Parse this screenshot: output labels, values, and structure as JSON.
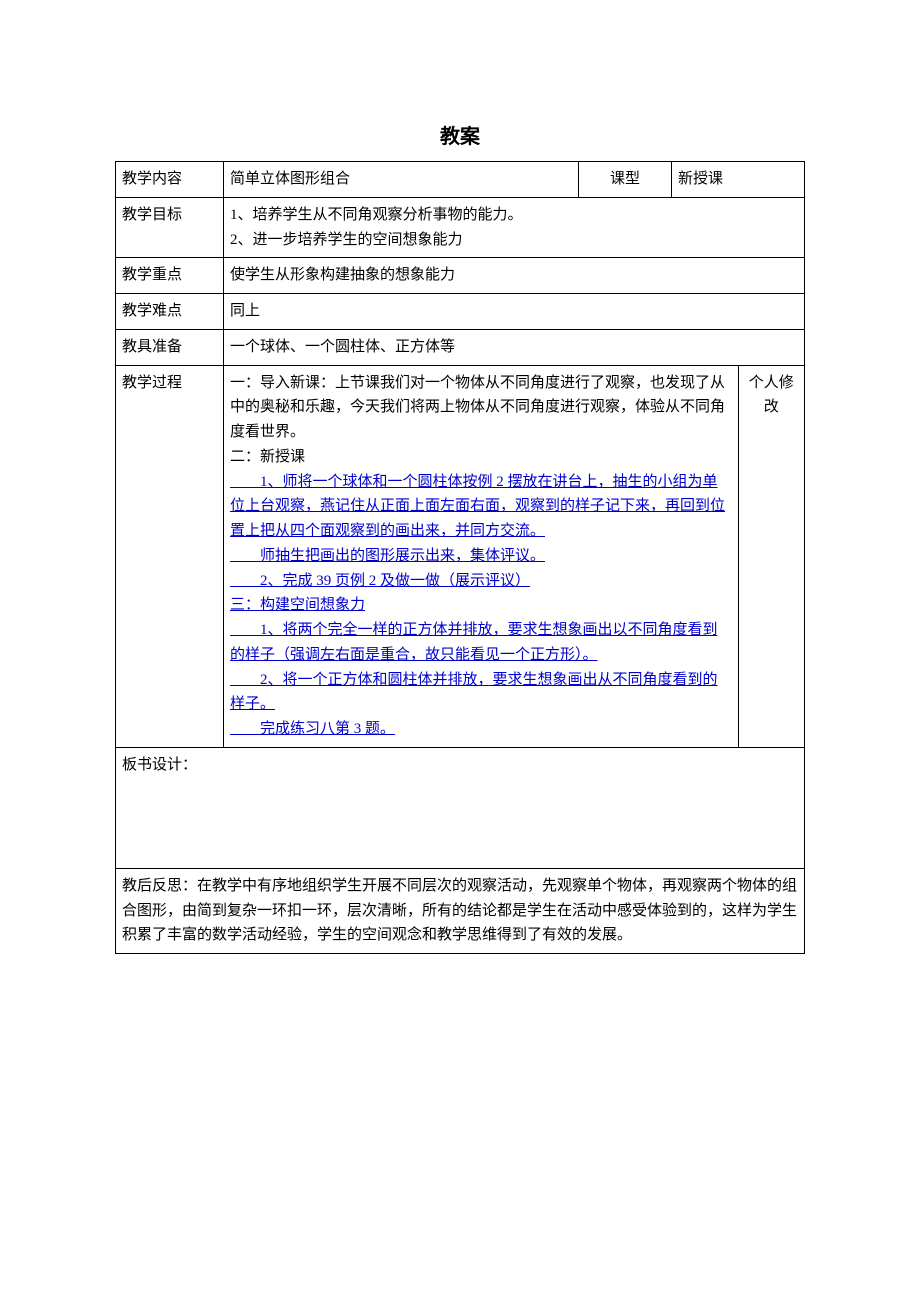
{
  "title": "教案",
  "row1": {
    "label": "教学内容",
    "content": "简单立体图形组合",
    "ktype_label": "课型",
    "ktype_value": "新授课"
  },
  "row2": {
    "label": "教学目标",
    "line1": "1、培养学生从不同角观察分析事物的能力。",
    "line2": "2、进一步培养学生的空间想象能力"
  },
  "row3": {
    "label": "教学重点",
    "content": "使学生从形象构建抽象的想象能力"
  },
  "row4": {
    "label": "教学难点",
    "content": "同上"
  },
  "row5": {
    "label": "教具准备",
    "content": "一个球体、一个圆柱体、正方体等"
  },
  "process": {
    "label": "教学过程",
    "mod_label": "个人修改",
    "p1": "一：导入新课：上节课我们对一个物体从不同角度进行了观察，也发现了从中的奥秘和乐趣，今天我们将两上物体从不同角度进行观察，体验从不同角度看世界。",
    "p2": "二：新授课",
    "l1": "　　1、师将一个球体和一个圆柱体按例 2 摆放在讲台上，抽生的小组为单位上台观察，燕记住从正面上面左面右面，观察到的样子记下来，再回到位置上把从四个面观察到的画出来，并同方交流。",
    "l2": "　　师抽生把画出的图形展示出来，集体评议。",
    "l3": "　　2、完成 39 页例 2 及做一做（展示评议）",
    "l4": "三：构建空间想象力",
    "l5": "　　1、将两个完全一样的正方体并排放，要求生想象画出以不同角度看到的样子（强调左右面是重合，故只能看见一个正方形）。",
    "l6": "　　2、将一个正方体和圆柱体并排放，要求生想象画出从不同角度看到的样子。",
    "l7": "　　完成练习八第 3 题。"
  },
  "board": {
    "label": "板书设计："
  },
  "reflect": {
    "text": "教后反思：在教学中有序地组织学生开展不同层次的观察活动，先观察单个物体，再观察两个物体的组合图形，由简到复杂一环扣一环，层次清晰，所有的结论都是学生在活动中感受体验到的，这样为学生积累了丰富的数学活动经验，学生的空间观念和教学思维得到了有效的发展。"
  }
}
